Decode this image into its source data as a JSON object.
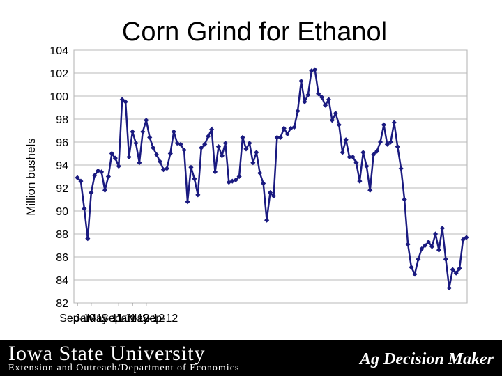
{
  "chart_data": {
    "type": "line",
    "title": "Corn Grind for Ethanol",
    "ylabel": "Million bushels",
    "xlabel": "",
    "ylim": [
      82,
      104
    ],
    "yticks": [
      82,
      84,
      86,
      88,
      90,
      92,
      94,
      96,
      98,
      100,
      102,
      104
    ],
    "xticks": [
      "Sep-10",
      "Jan-11",
      "May-11",
      "Sep-11",
      "Jan-12",
      "May-12",
      "Sep-12"
    ],
    "grid": true,
    "line_color": "#1a1a80",
    "series": [
      {
        "values": [
          92.9,
          92.6,
          90.2,
          87.6,
          91.6,
          93.1,
          93.5,
          93.4,
          91.8,
          93.0,
          95.0,
          94.6,
          93.9,
          99.7,
          99.5,
          94.7,
          96.9,
          95.9,
          94.2,
          96.9,
          97.9,
          96.4,
          95.5,
          94.9,
          94.3,
          93.6,
          93.7,
          95.0,
          96.9,
          95.9,
          95.8,
          95.3,
          90.8,
          93.8,
          92.8,
          91.4,
          95.5,
          95.8,
          96.5,
          97.1,
          93.4,
          95.6,
          94.8,
          95.9,
          92.5,
          92.6,
          92.7,
          93.0,
          96.4,
          95.4,
          95.9,
          94.2,
          95.1,
          93.3,
          92.4,
          89.2,
          91.6,
          91.3,
          96.4,
          96.4,
          97.2,
          96.7,
          97.2,
          97.3,
          98.7,
          101.3,
          99.5,
          100.1,
          102.2,
          102.3,
          100.2,
          99.9,
          99.2,
          99.7,
          97.9,
          98.5,
          97.5,
          95.1,
          96.2,
          94.7,
          94.7,
          94.2,
          92.6,
          95.1,
          93.9,
          91.8,
          94.9,
          95.2,
          96.0,
          97.5,
          95.8,
          96.0,
          97.7,
          95.6,
          93.7,
          91.0,
          87.1,
          85.1,
          84.5,
          85.8,
          86.7,
          87.0,
          87.3,
          86.9,
          88.0,
          86.6,
          88.5,
          85.8,
          83.3,
          84.9,
          84.6,
          85.0,
          87.5,
          87.7
        ]
      }
    ]
  },
  "footer": {
    "university": "Iowa State University",
    "department": "Extension and Outreach/Department of Economics",
    "brand": "Ag Decision Maker"
  }
}
